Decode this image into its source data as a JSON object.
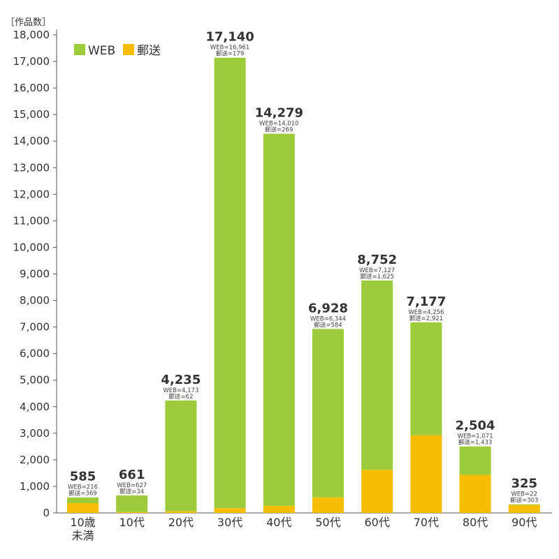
{
  "chart_data": {
    "type": "bar",
    "stacked": true,
    "unit_label": "［作品数］",
    "categories": [
      "10歳\n未満",
      "10代",
      "20代",
      "30代",
      "40代",
      "50代",
      "60代",
      "70代",
      "80代",
      "90代"
    ],
    "series": [
      {
        "name": "郵送",
        "color": "#f7bd00",
        "values": [
          369,
          34,
          62,
          179,
          269,
          584,
          1625,
          2921,
          1433,
          303
        ]
      },
      {
        "name": "WEB",
        "color": "#9ccc3a",
        "values": [
          216,
          627,
          4173,
          16961,
          14010,
          6344,
          7127,
          4256,
          1071,
          22
        ]
      }
    ],
    "totals": [
      585,
      661,
      4235,
      17140,
      14279,
      6928,
      8752,
      7177,
      2504,
      325
    ],
    "total_labels": [
      "585",
      "661",
      "4,235",
      "17,140",
      "14,279",
      "6,928",
      "8,752",
      "7,177",
      "2,504",
      "325"
    ],
    "web_labels": [
      "WEB=216",
      "WEB=627",
      "WEB=4,173",
      "WEB=16,961",
      "WEB=14,010",
      "WEB=6,344",
      "WEB=7,127",
      "WEB=4,256",
      "WEB=1,071",
      "WEB=22"
    ],
    "post_labels": [
      "郵送=369",
      "郵送=34",
      "郵送=62",
      "郵送=179",
      "郵送=269",
      "郵送=584",
      "郵送=1,625",
      "郵送=2,921",
      "郵送=1,433",
      "郵送=303"
    ],
    "ylim": [
      0,
      18000
    ],
    "ytick_labels": [
      "0",
      "1,000",
      "2,000",
      "3,000",
      "4,000",
      "5,000",
      "6,000",
      "7,000",
      "8,000",
      "9,000",
      "10,000",
      "11,000",
      "12,000",
      "13,000",
      "14,000",
      "15,000",
      "16,000",
      "17,000",
      "18,000"
    ],
    "legend": {
      "position": "top-left",
      "items": [
        "WEB",
        "郵送"
      ]
    },
    "grid": false
  }
}
